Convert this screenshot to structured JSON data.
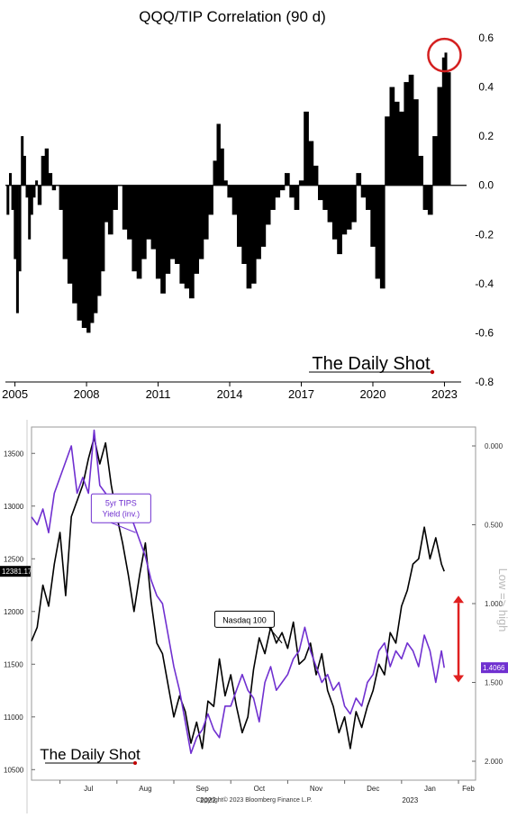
{
  "chart_data": [
    {
      "type": "bar",
      "title": "QQQ/TIP Correlation (90 d)",
      "xlabel": "",
      "ylabel": "",
      "x_ticks": [
        "2005",
        "2008",
        "2011",
        "2014",
        "2017",
        "2020",
        "2023"
      ],
      "x_tick_values": [
        2005,
        2008,
        2011,
        2014,
        2017,
        2020,
        2023
      ],
      "xlim": [
        2004.6,
        2023.7
      ],
      "y_ticks": [
        "0.6",
        "0.4",
        "0.2",
        "0.0",
        "-0.2",
        "-0.4",
        "-0.6",
        "-0.8"
      ],
      "y_tick_values": [
        0.6,
        0.4,
        0.2,
        0.0,
        -0.2,
        -0.4,
        -0.6,
        -0.8
      ],
      "ylim": [
        -0.8,
        0.6
      ],
      "y_axis_side": "right",
      "grid": false,
      "bar_color": "#000000",
      "highlight": {
        "x": 2023.0,
        "y": 0.53,
        "color": "#d42020",
        "shape": "circle"
      },
      "watermark": "The Daily Shot",
      "series": [
        {
          "x": [
            2004.65,
            2004.75,
            2004.85,
            2004.95,
            2005.05,
            2005.15,
            2005.25,
            2005.35,
            2005.45,
            2005.55,
            2005.65,
            2005.75,
            2005.85,
            2005.95,
            2006.1,
            2006.25,
            2006.4,
            2006.55,
            2006.7,
            2006.85,
            2007.0,
            2007.2,
            2007.4,
            2007.6,
            2007.8,
            2008.0,
            2008.15,
            2008.3,
            2008.45,
            2008.6,
            2008.75,
            2008.9,
            2009.1,
            2009.3,
            2009.5,
            2009.7,
            2009.9,
            2010.1,
            2010.3,
            2010.5,
            2010.7,
            2010.9,
            2011.1,
            2011.3,
            2011.5,
            2011.7,
            2011.9,
            2012.1,
            2012.3,
            2012.5,
            2012.7,
            2012.9,
            2013.1,
            2013.3,
            2013.45,
            2013.6,
            2013.75,
            2013.9,
            2014.1,
            2014.3,
            2014.5,
            2014.7,
            2014.9,
            2015.1,
            2015.3,
            2015.5,
            2015.7,
            2015.9,
            2016.1,
            2016.3,
            2016.5,
            2016.7,
            2016.9,
            2017.1,
            2017.3,
            2017.5,
            2017.7,
            2017.9,
            2018.1,
            2018.3,
            2018.5,
            2018.7,
            2018.9,
            2019.1,
            2019.3,
            2019.5,
            2019.7,
            2019.9,
            2020.1,
            2020.3,
            2020.5,
            2020.7,
            2020.9,
            2021.1,
            2021.3,
            2021.5,
            2021.7,
            2021.9,
            2022.1,
            2022.3,
            2022.5,
            2022.7,
            2022.9,
            2023.0,
            2023.1
          ],
          "values": [
            -0.12,
            0.05,
            -0.1,
            -0.3,
            -0.52,
            -0.35,
            0.2,
            0.12,
            -0.05,
            -0.22,
            -0.12,
            -0.05,
            0.02,
            -0.08,
            0.12,
            0.15,
            0.05,
            -0.02,
            0.0,
            -0.1,
            -0.3,
            -0.4,
            -0.48,
            -0.55,
            -0.58,
            -0.6,
            -0.56,
            -0.52,
            -0.45,
            -0.35,
            -0.15,
            -0.2,
            -0.1,
            0.0,
            -0.18,
            -0.22,
            -0.35,
            -0.38,
            -0.3,
            -0.22,
            -0.26,
            -0.38,
            -0.44,
            -0.36,
            -0.3,
            -0.32,
            -0.4,
            -0.42,
            -0.46,
            -0.36,
            -0.3,
            -0.22,
            -0.12,
            0.1,
            0.25,
            0.15,
            0.02,
            -0.05,
            -0.12,
            -0.25,
            -0.32,
            -0.42,
            -0.4,
            -0.3,
            -0.25,
            -0.16,
            -0.1,
            -0.05,
            -0.02,
            0.05,
            -0.05,
            -0.1,
            0.02,
            0.3,
            0.18,
            0.08,
            -0.06,
            -0.1,
            -0.15,
            -0.22,
            -0.28,
            -0.2,
            -0.18,
            -0.15,
            0.05,
            -0.05,
            -0.1,
            -0.25,
            -0.38,
            -0.42,
            0.28,
            0.4,
            0.34,
            0.3,
            0.42,
            0.45,
            0.35,
            0.12,
            -0.1,
            -0.12,
            0.2,
            0.4,
            0.52,
            0.54,
            0.46
          ]
        }
      ]
    },
    {
      "type": "line",
      "x_ticks": [
        "Jul",
        "Aug",
        "Sep",
        "Oct",
        "Nov",
        "Dec",
        "Jan",
        "Feb"
      ],
      "x_tick_values": [
        7,
        8,
        9,
        10,
        11,
        12,
        13,
        14
      ],
      "xlim": [
        6.5,
        14.3
      ],
      "year_labels": [
        {
          "label": "2022",
          "x": 9.6
        },
        {
          "label": "2023",
          "x": 13.15
        }
      ],
      "left_axis": {
        "ticks": [
          "13500",
          "13000",
          "12500",
          "12000",
          "11500",
          "11000",
          "10500"
        ],
        "tick_values": [
          13500,
          13000,
          12500,
          12000,
          11500,
          11000,
          10500
        ],
        "ylim": [
          10400,
          13750
        ]
      },
      "right_axis": {
        "ticks": [
          "0.000",
          "0.500",
          "1.000",
          "1.500",
          "2.000"
        ],
        "tick_values": [
          0.0,
          0.5,
          1.0,
          1.5,
          2.0
        ],
        "ylim": [
          -0.12,
          2.12
        ],
        "inverted": true,
        "label": "Low => high"
      },
      "last_value_tags": [
        {
          "axis": "left",
          "text": "12381.17",
          "value": 12381.17,
          "color": "#000000",
          "text_color": "#ffffff"
        },
        {
          "axis": "right",
          "text": "1.4066",
          "value": 1.4066,
          "color": "#7030d0",
          "text_color": "#ffffff"
        }
      ],
      "annotations": [
        {
          "text_lines": [
            "5yr TIPS",
            "Yield (inv.)"
          ],
          "color": "#7030d0",
          "anchor_x": 7.55,
          "anchor_y": 0.35,
          "target_x": 8.33,
          "target_y": 0.55,
          "axis": "right"
        },
        {
          "text_lines": [
            "Nasdaq 100"
          ],
          "color": "#000000",
          "anchor_x": 10.7,
          "anchor_y": 11850,
          "target_x": 10.9,
          "target_y": 11700,
          "axis": "left"
        }
      ],
      "range_arrow": {
        "color": "#e02020",
        "x": 14.0,
        "from": 1.5,
        "to": 0.95,
        "axis": "right"
      },
      "watermark": "The Daily Shot",
      "copyright": "Copyright© 2023 Bloomberg Finance L.P.",
      "series": [
        {
          "name": "Nasdaq 100",
          "axis": "left",
          "color": "#000000",
          "x": [
            6.5,
            6.6,
            6.7,
            6.8,
            6.9,
            7.0,
            7.1,
            7.2,
            7.3,
            7.4,
            7.5,
            7.6,
            7.7,
            7.8,
            7.9,
            8.0,
            8.1,
            8.2,
            8.3,
            8.4,
            8.5,
            8.6,
            8.7,
            8.8,
            8.9,
            9.0,
            9.1,
            9.2,
            9.3,
            9.4,
            9.5,
            9.6,
            9.7,
            9.8,
            9.9,
            10.0,
            10.1,
            10.2,
            10.3,
            10.4,
            10.5,
            10.6,
            10.7,
            10.8,
            10.9,
            11.0,
            11.1,
            11.2,
            11.3,
            11.4,
            11.5,
            11.6,
            11.7,
            11.8,
            11.9,
            12.0,
            12.1,
            12.2,
            12.3,
            12.4,
            12.5,
            12.6,
            12.7,
            12.8,
            12.9,
            13.0,
            13.1,
            13.2,
            13.3,
            13.4,
            13.5,
            13.6,
            13.7,
            13.75
          ],
          "values": [
            11720,
            11850,
            12250,
            12050,
            12450,
            12750,
            12150,
            12900,
            13050,
            13200,
            13450,
            13650,
            13400,
            13600,
            13200,
            12900,
            12650,
            12350,
            12000,
            12350,
            12650,
            12100,
            11700,
            11600,
            11300,
            11000,
            11200,
            11050,
            10750,
            10950,
            10700,
            11150,
            11100,
            11550,
            11200,
            11400,
            11100,
            10850,
            11000,
            11450,
            11750,
            11600,
            11850,
            11700,
            11800,
            11650,
            11900,
            11500,
            11550,
            11700,
            11400,
            11600,
            11250,
            11100,
            10850,
            11000,
            10700,
            11050,
            10900,
            11100,
            11250,
            11500,
            11400,
            11800,
            11700,
            12050,
            12200,
            12450,
            12500,
            12800,
            12500,
            12700,
            12450,
            12381
          ]
        },
        {
          "name": "5yr TIPS Yield (inv.)",
          "axis": "right",
          "color": "#7030d0",
          "x": [
            6.5,
            6.6,
            6.7,
            6.8,
            6.9,
            7.0,
            7.1,
            7.2,
            7.3,
            7.4,
            7.5,
            7.6,
            7.7,
            7.8,
            7.9,
            8.0,
            8.1,
            8.2,
            8.3,
            8.4,
            8.5,
            8.6,
            8.7,
            8.8,
            8.9,
            9.0,
            9.1,
            9.2,
            9.3,
            9.4,
            9.5,
            9.6,
            9.7,
            9.8,
            9.9,
            10.0,
            10.1,
            10.2,
            10.3,
            10.4,
            10.5,
            10.6,
            10.7,
            10.8,
            10.9,
            11.0,
            11.1,
            11.2,
            11.3,
            11.4,
            11.5,
            11.6,
            11.7,
            11.8,
            11.9,
            12.0,
            12.1,
            12.2,
            12.3,
            12.4,
            12.5,
            12.6,
            12.7,
            12.8,
            12.9,
            13.0,
            13.1,
            13.2,
            13.3,
            13.4,
            13.5,
            13.6,
            13.7,
            13.75
          ],
          "values": [
            0.45,
            0.5,
            0.4,
            0.55,
            0.3,
            0.2,
            0.1,
            0.0,
            0.3,
            0.2,
            0.3,
            -0.1,
            0.25,
            0.3,
            0.35,
            0.35,
            0.4,
            0.4,
            0.5,
            0.6,
            0.7,
            0.85,
            0.95,
            1.0,
            1.2,
            1.4,
            1.55,
            1.75,
            1.95,
            1.85,
            1.8,
            1.7,
            1.8,
            1.85,
            1.65,
            1.65,
            1.55,
            1.45,
            1.55,
            1.6,
            1.75,
            1.5,
            1.4,
            1.55,
            1.5,
            1.45,
            1.35,
            1.3,
            1.15,
            1.3,
            1.4,
            1.5,
            1.45,
            1.55,
            1.5,
            1.65,
            1.7,
            1.6,
            1.65,
            1.5,
            1.45,
            1.3,
            1.25,
            1.4,
            1.3,
            1.35,
            1.25,
            1.3,
            1.4,
            1.2,
            1.3,
            1.5,
            1.3,
            1.4066
          ]
        }
      ]
    }
  ]
}
